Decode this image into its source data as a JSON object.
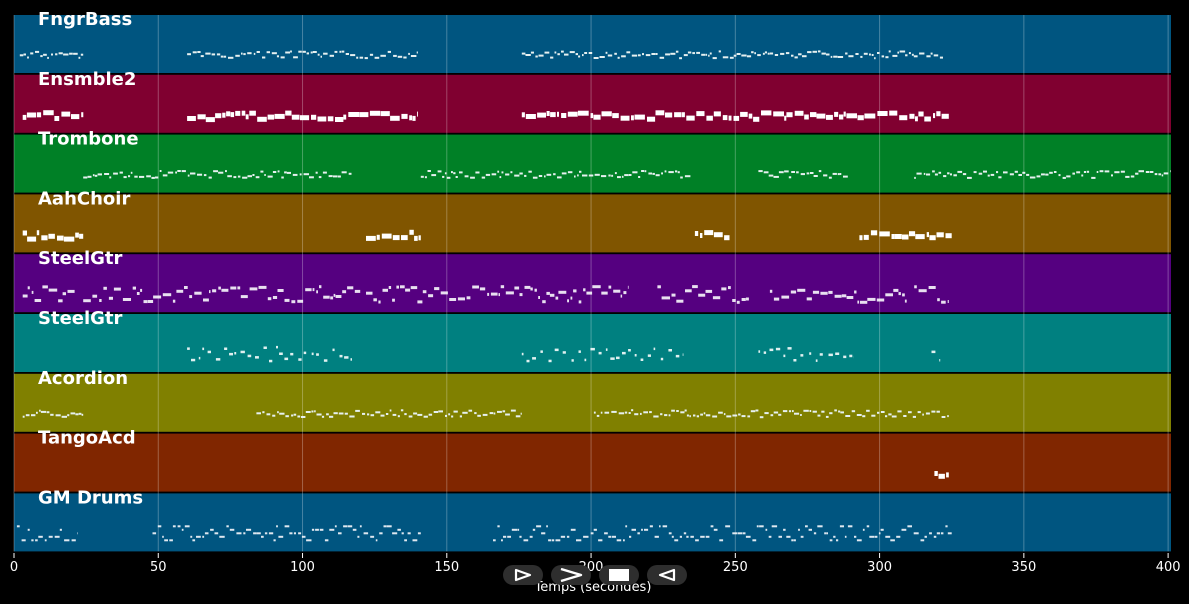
{
  "chart_data": {
    "type": "piano-roll",
    "xlabel": "Temps (secondes)",
    "xlim": [
      0,
      401
    ],
    "x_ticks": [
      0,
      50,
      100,
      150,
      200,
      250,
      300,
      350,
      400
    ],
    "grid": true,
    "tracks": [
      {
        "name": "FngrBass",
        "color": "#005580",
        "style": "thin",
        "segments": [
          [
            2,
            24
          ],
          [
            60,
            140
          ],
          [
            176,
            322
          ]
        ]
      },
      {
        "name": "Ensmble2",
        "color": "#800030",
        "style": "blocks",
        "segments": [
          [
            3,
            24
          ],
          [
            60,
            140
          ],
          [
            176,
            324
          ]
        ]
      },
      {
        "name": "Trombone",
        "color": "#008026",
        "style": "thin",
        "segments": [
          [
            24,
            117
          ],
          [
            141,
            235
          ],
          [
            258,
            289
          ],
          [
            312,
            401
          ]
        ]
      },
      {
        "name": "AahChoir",
        "color": "#805500",
        "style": "blocks",
        "segments": [
          [
            3,
            24
          ],
          [
            122,
            141
          ],
          [
            236,
            248
          ],
          [
            293,
            325
          ]
        ]
      },
      {
        "name": "SteelGtr",
        "color": "#550080",
        "style": "dense",
        "segments": [
          [
            3,
            21
          ],
          [
            24,
            120
          ],
          [
            122,
            213
          ],
          [
            223,
            255
          ],
          [
            262,
            310
          ],
          [
            312,
            324
          ]
        ]
      },
      {
        "name": "SteelGtr",
        "color": "#008080",
        "style": "sparse",
        "segments": [
          [
            60,
            118
          ],
          [
            176,
            232
          ],
          [
            258,
            291
          ],
          [
            318,
            321
          ]
        ]
      },
      {
        "name": "Acordion",
        "color": "#808000",
        "style": "thin",
        "segments": [
          [
            3,
            24
          ],
          [
            84,
            176
          ],
          [
            201,
            324
          ]
        ]
      },
      {
        "name": "TangoAcd",
        "color": "#802600",
        "style": "blocks",
        "segments": [
          [
            319,
            324
          ]
        ]
      },
      {
        "name": "GM Drums",
        "color": "#005580",
        "style": "drums",
        "segments": [
          [
            1,
            22
          ],
          [
            48,
            141
          ],
          [
            166,
            325
          ]
        ]
      }
    ]
  },
  "controls": [
    {
      "name": "play-icon",
      "symbol": "play"
    },
    {
      "name": "forward-icon",
      "symbol": "forward"
    },
    {
      "name": "stop-icon",
      "symbol": "stop"
    },
    {
      "name": "rewind-icon",
      "symbol": "rewind"
    }
  ]
}
